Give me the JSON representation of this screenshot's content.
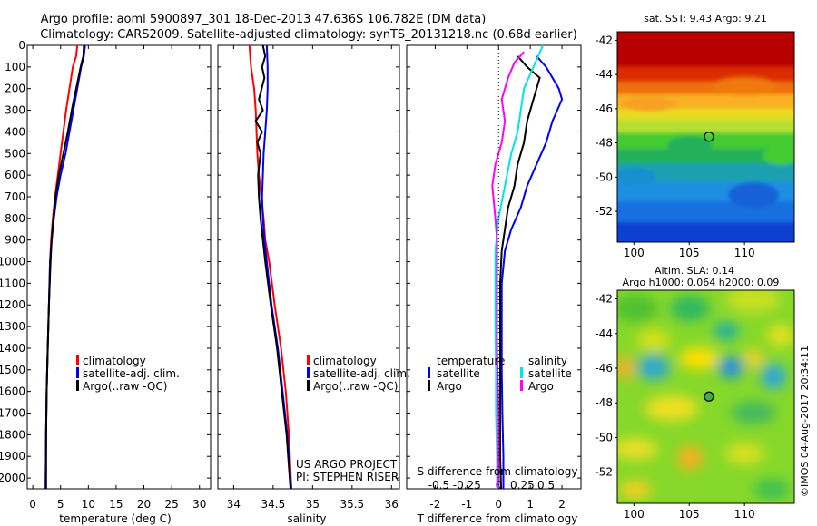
{
  "header": {
    "line1": "Argo profile: aoml 5900897_301 18-Dec-2013 47.636S 106.782E (DM data)",
    "line2": "Climatology: CARS2009. Satellite-adjusted climatology: synTS_20131218.nc (0.68d earlier)"
  },
  "legend_left": {
    "clim": "climatology",
    "sat": "satellite-adj. clim.",
    "argo": "Argo(..raw -QC)"
  },
  "project": {
    "line1": "US ARGO PROJECT",
    "line2": "PI: STEPHEN RISER"
  },
  "diff_legend": {
    "temp_head": "temperature",
    "sal_head": "salinity",
    "sat": "satellite",
    "argo": "Argo"
  },
  "map_titles": {
    "sst": "sat. SST: 9.43 Argo: 9.21",
    "sla1": "Altim. SLA: 0.14",
    "sla2": "Argo h1000: 0.064 h2000: 0.09"
  },
  "watermark": "©IMOS 04-Aug-2017 20:34:11",
  "colors": {
    "climatology": "#ff0000",
    "satellite": "#0000ff",
    "argo": "#000000",
    "sal_sat": "#00e5e5",
    "sal_argo": "#ff00ff"
  },
  "chart_data": [
    {
      "type": "line",
      "xlabel": "temperature (deg C)",
      "xticks": [
        0,
        5,
        10,
        15,
        20,
        25,
        30
      ],
      "xlim": [
        -1,
        32
      ],
      "ylim": [
        2050,
        0
      ],
      "yticks": [
        0,
        100,
        200,
        300,
        400,
        500,
        600,
        700,
        800,
        900,
        1000,
        1100,
        1200,
        1300,
        1400,
        1500,
        1600,
        1700,
        1800,
        1900,
        2000
      ],
      "series": [
        {
          "name": "climatology",
          "color": "#ff0000",
          "points": [
            [
              8.0,
              0
            ],
            [
              7.8,
              50
            ],
            [
              7.2,
              100
            ],
            [
              6.6,
              200
            ],
            [
              6.0,
              300
            ],
            [
              5.5,
              400
            ],
            [
              5.0,
              500
            ],
            [
              4.5,
              600
            ],
            [
              4.0,
              700
            ],
            [
              3.6,
              800
            ],
            [
              3.3,
              900
            ],
            [
              3.1,
              1000
            ],
            [
              2.9,
              1200
            ],
            [
              2.7,
              1400
            ],
            [
              2.5,
              1600
            ],
            [
              2.4,
              1800
            ],
            [
              2.3,
              2050
            ]
          ]
        },
        {
          "name": "satellite-adj. clim.",
          "color": "#0000ff",
          "points": [
            [
              9.4,
              0
            ],
            [
              9.2,
              50
            ],
            [
              8.7,
              100
            ],
            [
              8.0,
              200
            ],
            [
              7.3,
              300
            ],
            [
              6.6,
              400
            ],
            [
              5.9,
              500
            ],
            [
              5.0,
              600
            ],
            [
              4.3,
              700
            ],
            [
              3.8,
              800
            ],
            [
              3.4,
              900
            ],
            [
              3.1,
              1000
            ],
            [
              2.9,
              1200
            ],
            [
              2.7,
              1400
            ],
            [
              2.5,
              1600
            ],
            [
              2.4,
              1800
            ],
            [
              2.3,
              2050
            ]
          ]
        },
        {
          "name": "Argo(..raw -QC)",
          "color": "#000000",
          "points": [
            [
              9.2,
              0
            ],
            [
              9.1,
              50
            ],
            [
              8.6,
              100
            ],
            [
              7.8,
              200
            ],
            [
              7.0,
              300
            ],
            [
              6.3,
              400
            ],
            [
              5.5,
              500
            ],
            [
              4.7,
              600
            ],
            [
              4.1,
              700
            ],
            [
              3.7,
              800
            ],
            [
              3.4,
              900
            ],
            [
              3.2,
              1000
            ],
            [
              2.9,
              1200
            ],
            [
              2.7,
              1400
            ],
            [
              2.5,
              1600
            ],
            [
              2.4,
              1800
            ],
            [
              2.4,
              2050
            ]
          ]
        }
      ]
    },
    {
      "type": "line",
      "xlabel": "salinity",
      "xticks": [
        34,
        34.5,
        35,
        35.5,
        36
      ],
      "xlim": [
        33.8,
        36.1
      ],
      "ylim": [
        2050,
        0
      ],
      "series": [
        {
          "name": "climatology",
          "color": "#ff0000",
          "points": [
            [
              34.2,
              0
            ],
            [
              34.22,
              100
            ],
            [
              34.26,
              200
            ],
            [
              34.28,
              300
            ],
            [
              34.29,
              400
            ],
            [
              34.3,
              500
            ],
            [
              34.32,
              600
            ],
            [
              34.35,
              700
            ],
            [
              34.38,
              800
            ],
            [
              34.4,
              900
            ],
            [
              34.45,
              1000
            ],
            [
              34.52,
              1200
            ],
            [
              34.6,
              1400
            ],
            [
              34.66,
              1600
            ],
            [
              34.7,
              1800
            ],
            [
              34.73,
              2050
            ]
          ]
        },
        {
          "name": "satellite-adj. clim.",
          "color": "#0000ff",
          "points": [
            [
              34.42,
              0
            ],
            [
              34.43,
              100
            ],
            [
              34.43,
              200
            ],
            [
              34.42,
              300
            ],
            [
              34.4,
              400
            ],
            [
              34.38,
              500
            ],
            [
              34.37,
              600
            ],
            [
              34.36,
              700
            ],
            [
              34.37,
              800
            ],
            [
              34.39,
              900
            ],
            [
              34.42,
              1000
            ],
            [
              34.48,
              1200
            ],
            [
              34.56,
              1400
            ],
            [
              34.62,
              1600
            ],
            [
              34.68,
              1800
            ],
            [
              34.73,
              2050
            ]
          ]
        },
        {
          "name": "Argo(..raw -QC)",
          "color": "#000000",
          "points": [
            [
              34.37,
              0
            ],
            [
              34.4,
              50
            ],
            [
              34.36,
              100
            ],
            [
              34.39,
              150
            ],
            [
              34.32,
              250
            ],
            [
              34.37,
              300
            ],
            [
              34.28,
              350
            ],
            [
              34.36,
              400
            ],
            [
              34.3,
              450
            ],
            [
              34.34,
              500
            ],
            [
              34.31,
              600
            ],
            [
              34.32,
              700
            ],
            [
              34.34,
              800
            ],
            [
              34.37,
              900
            ],
            [
              34.4,
              1000
            ],
            [
              34.47,
              1200
            ],
            [
              34.55,
              1400
            ],
            [
              34.61,
              1600
            ],
            [
              34.67,
              1800
            ],
            [
              34.72,
              2050
            ]
          ]
        }
      ]
    },
    {
      "type": "line",
      "xlabel": "T difference from climatology",
      "xlabel_top": "S difference from climatology",
      "xticks": [
        -2,
        -1,
        0,
        1,
        2
      ],
      "xticks_top": [
        "-0.5",
        "-0.25",
        "0",
        "0.25",
        "0.5"
      ],
      "xlim": [
        -2.9,
        2.6
      ],
      "ylim": [
        2050,
        0
      ],
      "series": [
        {
          "name": "temperature satellite",
          "color": "#0000ff",
          "points": [
            [
              1.2,
              50
            ],
            [
              1.5,
              100
            ],
            [
              1.9,
              200
            ],
            [
              2.0,
              250
            ],
            [
              1.7,
              350
            ],
            [
              1.5,
              450
            ],
            [
              1.2,
              550
            ],
            [
              0.9,
              650
            ],
            [
              0.7,
              750
            ],
            [
              0.4,
              850
            ],
            [
              0.2,
              950
            ],
            [
              0.1,
              1100
            ],
            [
              0.1,
              1300
            ],
            [
              0.1,
              1500
            ],
            [
              0.12,
              1700
            ],
            [
              0.15,
              1900
            ],
            [
              0.15,
              2050
            ]
          ]
        },
        {
          "name": "temperature Argo",
          "color": "#000000",
          "points": [
            [
              0.6,
              50
            ],
            [
              0.9,
              100
            ],
            [
              1.3,
              150
            ],
            [
              1.1,
              250
            ],
            [
              0.9,
              350
            ],
            [
              0.8,
              450
            ],
            [
              0.6,
              550
            ],
            [
              0.5,
              650
            ],
            [
              0.3,
              750
            ],
            [
              0.2,
              850
            ],
            [
              0.1,
              950
            ],
            [
              0.05,
              1100
            ],
            [
              0.05,
              1300
            ],
            [
              0.05,
              1500
            ],
            [
              0.05,
              1700
            ],
            [
              0.05,
              1900
            ],
            [
              0.08,
              2050
            ]
          ]
        },
        {
          "name": "salinity satellite",
          "color": "#00e5e5",
          "points": [
            [
              1.4,
              0
            ],
            [
              1.1,
              100
            ],
            [
              0.8,
              200
            ],
            [
              0.7,
              300
            ],
            [
              0.6,
              400
            ],
            [
              0.4,
              500
            ],
            [
              0.2,
              650
            ],
            [
              0.0,
              800
            ],
            [
              -0.1,
              950
            ],
            [
              -0.1,
              1100
            ],
            [
              -0.1,
              1300
            ],
            [
              -0.08,
              1500
            ],
            [
              -0.08,
              1700
            ],
            [
              -0.05,
              1900
            ],
            [
              -0.05,
              2050
            ]
          ]
        },
        {
          "name": "salinity Argo",
          "color": "#ff00ff",
          "points": [
            [
              0.8,
              30
            ],
            [
              0.5,
              80
            ],
            [
              0.3,
              150
            ],
            [
              0.1,
              250
            ],
            [
              0.2,
              350
            ],
            [
              0.1,
              450
            ],
            [
              -0.1,
              550
            ],
            [
              -0.2,
              650
            ],
            [
              -0.1,
              800
            ],
            [
              -0.05,
              900
            ],
            [
              -0.05,
              1100
            ],
            [
              -0.05,
              1400
            ],
            [
              0.0,
              1700
            ],
            [
              0.0,
              2050
            ]
          ]
        }
      ]
    },
    {
      "type": "heatmap",
      "title": "sat. SST: 9.43 Argo: 9.21",
      "xticks": [
        "100",
        "105",
        "110"
      ],
      "yticks": [
        "-42",
        "-44",
        "-46",
        "-48",
        "-50",
        "-52"
      ],
      "xlim": [
        98.5,
        114.5
      ],
      "ylim": [
        -53.8,
        -41.5
      ],
      "argo_position": [
        106.782,
        -47.636
      ]
    },
    {
      "type": "heatmap",
      "title": "Altim. SLA: 0.14",
      "xticks": [
        "100",
        "105",
        "110"
      ],
      "yticks": [
        "-42",
        "-44",
        "-46",
        "-48",
        "-50",
        "-52"
      ],
      "xlim": [
        98.5,
        114.5
      ],
      "ylim": [
        -53.8,
        -41.5
      ],
      "argo_position": [
        106.782,
        -47.636
      ]
    }
  ]
}
